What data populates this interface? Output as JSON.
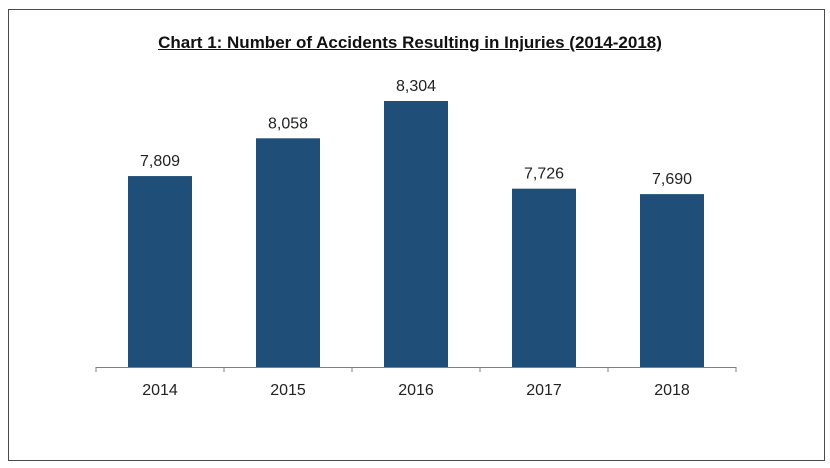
{
  "chart_data": {
    "type": "bar",
    "title": "Chart 1: Number of Accidents Resulting in Injuries (2014-2018)",
    "categories": [
      "2014",
      "2015",
      "2016",
      "2017",
      "2018"
    ],
    "values": [
      7809,
      8058,
      8304,
      7726,
      7690
    ],
    "value_labels": [
      "7,809",
      "8,058",
      "8,304",
      "7,726",
      "7,690"
    ],
    "xlabel": "",
    "ylabel": "",
    "ylim": [
      6550,
      8450
    ],
    "grid": false,
    "legend": "none",
    "bar_color": "#1f4e79"
  }
}
